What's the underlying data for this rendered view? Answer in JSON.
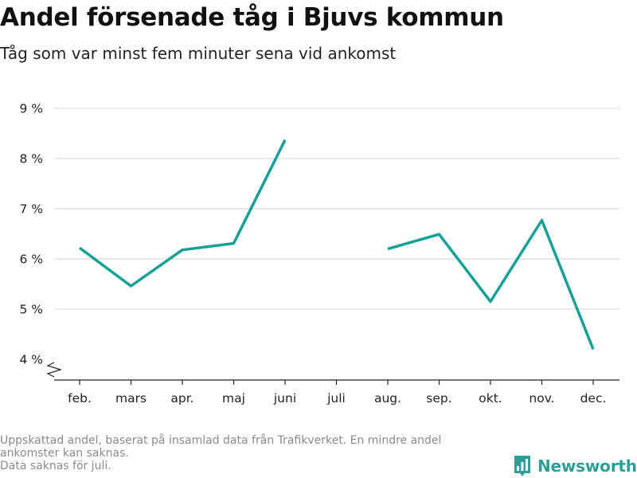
{
  "title": "Andel försenade tåg i Bjuvs kommun",
  "subtitle": "Tåg som var minst fem minuter sena vid ankomst",
  "footnote": {
    "line1": "Uppskattad andel, baserat på insamlad data från Trafikverket. En mindre andel",
    "line2": "ankomster kan saknas.",
    "line3": "Data saknas för juli."
  },
  "brand": {
    "name": "Newsworthy",
    "icon": "newsworthy-logo-icon",
    "color": "#2e9e96"
  },
  "colors": {
    "line": "#16a096",
    "grid": "#dddddd",
    "axis": "#222222"
  },
  "chart_data": {
    "type": "line",
    "categories": [
      "feb.",
      "mars",
      "apr.",
      "maj",
      "juni",
      "juli",
      "aug.",
      "sep.",
      "okt.",
      "nov.",
      "dec."
    ],
    "series": [
      {
        "values": [
          6.22,
          5.46,
          6.18,
          6.31,
          8.37,
          null,
          6.2,
          6.49,
          5.15,
          6.77,
          4.2
        ]
      }
    ],
    "y_ticks": [
      "4 %",
      "5 %",
      "6 %",
      "7 %",
      "8 %",
      "9 %"
    ],
    "ylim": [
      4,
      9
    ],
    "y_axis_break": true,
    "grid": true,
    "xlabel": "",
    "ylabel": ""
  }
}
